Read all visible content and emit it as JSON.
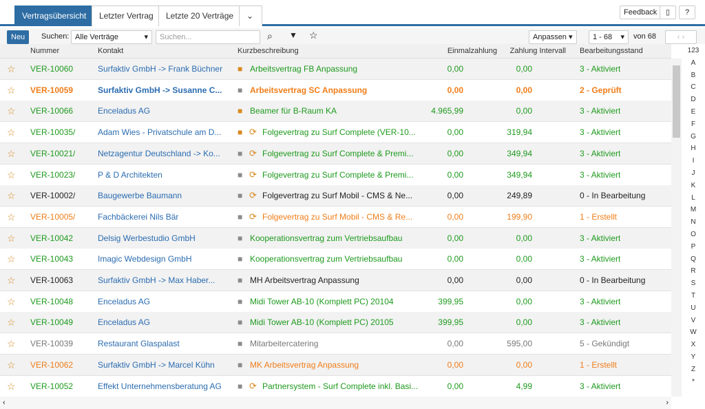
{
  "tabs": [
    "Vertragsübersicht",
    "Letzter Vertrag",
    "Letzte 20 Verträge"
  ],
  "top_buttons": {
    "feedback": "Feedback",
    "help": "?"
  },
  "toolbar": {
    "new": "Neu",
    "search_label": "Suchen:",
    "filter": "Alle Verträge",
    "search_placeholder": "Suchen...",
    "customize": "Anpassen",
    "range": "1 - 68",
    "total": "von 68"
  },
  "columns": [
    "Nummer",
    "Kontakt",
    "Kurzbeschreibung",
    "Einmalzahlung",
    "Zahlung Intervall",
    "Bearbeitungsstand"
  ],
  "rows": [
    {
      "cells": [
        "VER-10060",
        "Surfaktiv GmbH -> Frank Büchner",
        "Arbeitsvertrag FB Anpassung",
        "0,00",
        "0,00",
        "3 - Aktiviert"
      ],
      "color": "#1e9a1e",
      "bold": false,
      "folder": "#d68a1e",
      "recurring": false
    },
    {
      "cells": [
        "VER-10059",
        "Surfaktiv GmbH -> Susanne C...",
        "Arbeitsvertrag SC Anpassung",
        "0,00",
        "0,00",
        "2 - Geprüft"
      ],
      "color": "#f07d19",
      "bold": true,
      "folder": "#8a8a8a",
      "recurring": false
    },
    {
      "cells": [
        "VER-10066",
        "Enceladus AG",
        "Beamer für B-Raum KA",
        "4.965,99",
        "0,00",
        "3 - Aktiviert"
      ],
      "color": "#1e9a1e",
      "bold": false,
      "folder": "#d68a1e",
      "recurring": false
    },
    {
      "cells": [
        "VER-10035/",
        "Adam Wies - Privatschule am D...",
        "Folgevertrag zu Surf Complete (VER-10...",
        "0,00",
        "319,94",
        "3 - Aktiviert"
      ],
      "color": "#1e9a1e",
      "bold": false,
      "folder": "#d68a1e",
      "recurring": true
    },
    {
      "cells": [
        "VER-10021/",
        "Netzagentur Deutschland -> Ko...",
        "Folgevertrag zu Surf Complete & Premi...",
        "0,00",
        "349,94",
        "3 - Aktiviert"
      ],
      "color": "#1e9a1e",
      "bold": false,
      "folder": "#8a8a8a",
      "recurring": true
    },
    {
      "cells": [
        "VER-10023/",
        "P & D Architekten",
        "Folgevertrag zu Surf Complete & Premi...",
        "0,00",
        "349,94",
        "3 - Aktiviert"
      ],
      "color": "#1e9a1e",
      "bold": false,
      "folder": "#8a8a8a",
      "recurring": true
    },
    {
      "cells": [
        "VER-10002/",
        "Baugewerbe Baumann",
        "Folgevertrag zu Surf Mobil - CMS & Ne...",
        "0,00",
        "249,89",
        "0 - In Bearbeitung"
      ],
      "color": "#222222",
      "bold": false,
      "folder": "#8a8a8a",
      "recurring": true
    },
    {
      "cells": [
        "VER-10005/",
        "Fachbäckerei Nils Bär",
        "Folgevertrag zu Surf Mobil - CMS & Re...",
        "0,00",
        "199,90",
        "1 - Erstellt"
      ],
      "color": "#f07d19",
      "bold": false,
      "folder": "#8a8a8a",
      "recurring": true
    },
    {
      "cells": [
        "VER-10042",
        "Delsig Werbestudio GmbH",
        "Kooperationsvertrag zum Vertriebsaufbau",
        "0,00",
        "0,00",
        "3 - Aktiviert"
      ],
      "color": "#1e9a1e",
      "bold": false,
      "folder": "#8a8a8a",
      "recurring": false
    },
    {
      "cells": [
        "VER-10043",
        "Imagic Webdesign GmbH",
        "Kooperationsvertrag zum Vertriebsaufbau",
        "0,00",
        "0,00",
        "3 - Aktiviert"
      ],
      "color": "#1e9a1e",
      "bold": false,
      "folder": "#8a8a8a",
      "recurring": false
    },
    {
      "cells": [
        "VER-10063",
        "Surfaktiv GmbH -> Max Haber...",
        "MH Arbeitsvertrag Anpassung",
        "0,00",
        "0,00",
        "0 - In Bearbeitung"
      ],
      "color": "#222222",
      "bold": false,
      "folder": "#8a8a8a",
      "recurring": false
    },
    {
      "cells": [
        "VER-10048",
        "Enceladus AG",
        "Midi Tower AB-10 (Komplett PC) 20104",
        "399,95",
        "0,00",
        "3 - Aktiviert"
      ],
      "color": "#1e9a1e",
      "bold": false,
      "folder": "#8a8a8a",
      "recurring": false
    },
    {
      "cells": [
        "VER-10049",
        "Enceladus AG",
        "Midi Tower AB-10 (Komplett PC) 20105",
        "399,95",
        "0,00",
        "3 - Aktiviert"
      ],
      "color": "#1e9a1e",
      "bold": false,
      "folder": "#8a8a8a",
      "recurring": false
    },
    {
      "cells": [
        "VER-10039",
        "Restaurant Glaspalast",
        "Mitarbeitercatering",
        "0,00",
        "595,00",
        "5 - Gekündigt"
      ],
      "color": "#777777",
      "bold": false,
      "folder": "#8a8a8a",
      "recurring": false
    },
    {
      "cells": [
        "VER-10062",
        "Surfaktiv GmbH -> Marcel Kühn",
        "MK Arbeitsvertrag Anpassung",
        "0,00",
        "0,00",
        "1 - Erstellt"
      ],
      "color": "#f07d19",
      "bold": false,
      "folder": "#8a8a8a",
      "recurring": false
    },
    {
      "cells": [
        "VER-10052",
        "Effekt Unternehmensberatung AG",
        "Partnersystem - Surf Complete inkl. Basi...",
        "0,00",
        "4,99",
        "3 - Aktiviert"
      ],
      "color": "#1e9a1e",
      "bold": false,
      "folder": "#8a8a8a",
      "recurring": true
    }
  ],
  "alphabet": [
    "123",
    "A",
    "B",
    "C",
    "D",
    "E",
    "F",
    "G",
    "H",
    "I",
    "J",
    "K",
    "L",
    "M",
    "N",
    "O",
    "P",
    "Q",
    "R",
    "S",
    "T",
    "U",
    "V",
    "W",
    "X",
    "Y",
    "Z",
    "*"
  ]
}
